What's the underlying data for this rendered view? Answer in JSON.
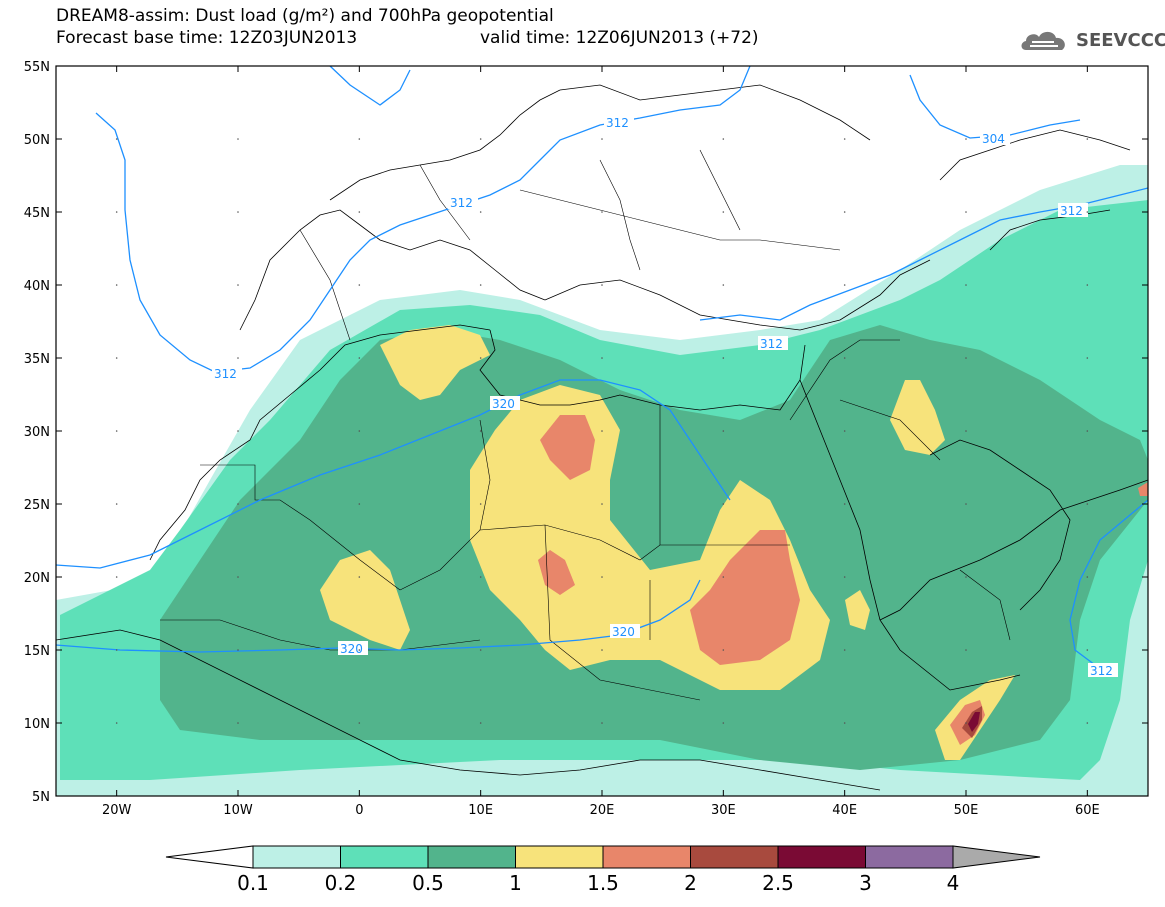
{
  "title": {
    "line1": "DREAM8-assim: Dust load (g/m²) and 700hPa geopotential",
    "line2": "Forecast base time: 12Z03JUN2013",
    "valid": "valid time: 12Z06JUN2013 (+72)"
  },
  "logo": {
    "text": "SEEVCCC",
    "icon": "cloud-logo-icon"
  },
  "axes": {
    "lat_labels": [
      "55N",
      "50N",
      "45N",
      "40N",
      "35N",
      "30N",
      "25N",
      "20N",
      "15N",
      "10N",
      "5N"
    ],
    "lon_labels": [
      "20W",
      "10W",
      "0",
      "10E",
      "20E",
      "30E",
      "40E",
      "50E",
      "60E"
    ],
    "lat_range": [
      5,
      55
    ],
    "lon_range": [
      -25,
      65
    ]
  },
  "contours": {
    "levels": [
      "312",
      "312",
      "312",
      "312",
      "312",
      "304",
      "320",
      "320",
      "320",
      "312"
    ],
    "color": "#1e90ff"
  },
  "colorbar": {
    "labels": [
      "0.1",
      "0.2",
      "0.5",
      "1",
      "1.5",
      "2",
      "2.5",
      "3",
      "4"
    ],
    "colors": [
      "#ffffff",
      "#bdf0e6",
      "#5ee0b8",
      "#52b48c",
      "#f7e37b",
      "#e8866a",
      "#a84a3e",
      "#7a0a34",
      "#8c6aa0",
      "#aaaaaa"
    ]
  }
}
